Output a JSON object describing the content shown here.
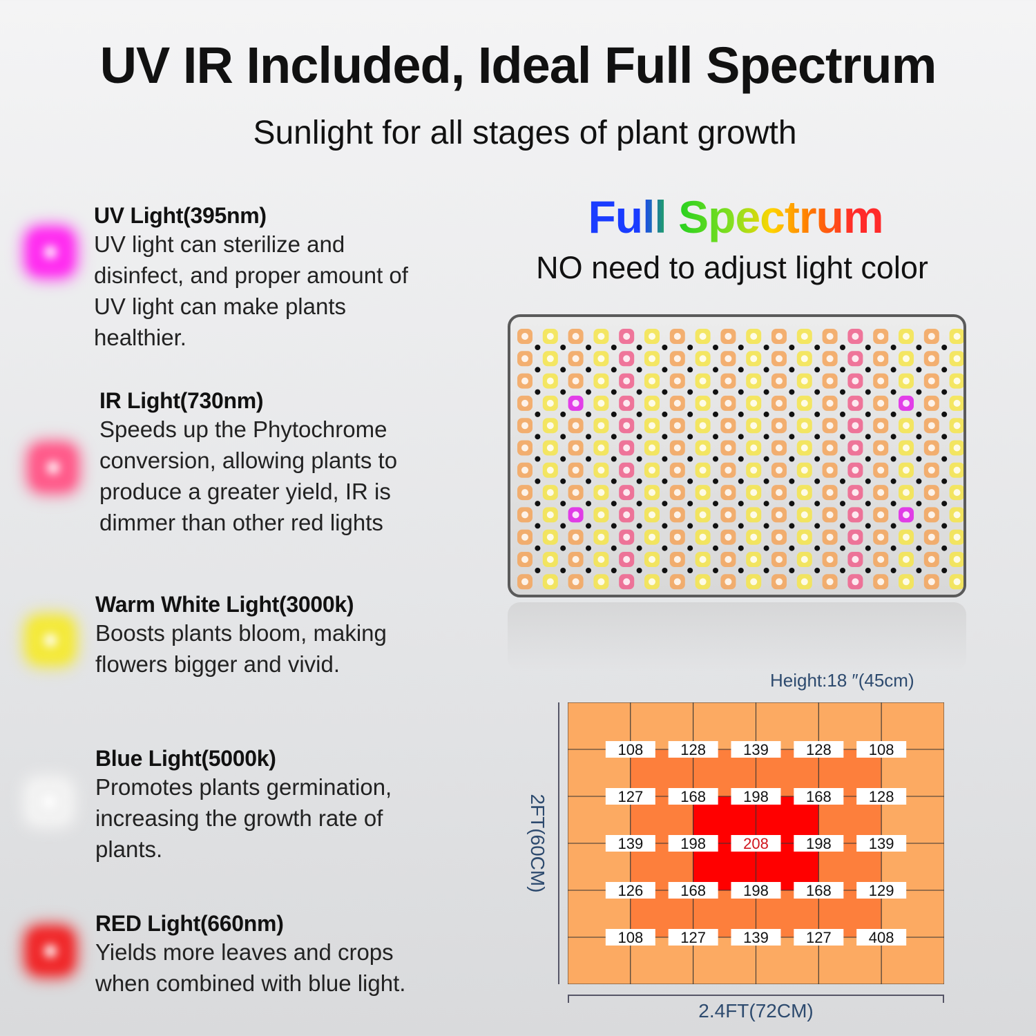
{
  "header": {
    "title": "UV IR Included, Ideal Full Spectrum",
    "subtitle": "Sunlight for all stages of plant growth"
  },
  "features": [
    {
      "title": "UV Light(395nm)",
      "text": "UV light can sterilize and disinfect, and proper amount of UV light can make plants healthier.",
      "color": "#ff2cf0"
    },
    {
      "title": "IR Light(730nm)",
      "text": "Speeds up the Phytochrome conversion, allowing plants to produce a greater yield, IR is dimmer than other red lights",
      "color": "#ff5a8a"
    },
    {
      "title": "Warm White Light(3000k)",
      "text": "Boosts plants bloom, making flowers bigger and vivid.",
      "color": "#f4e93a"
    },
    {
      "title": "Blue Light(5000k)",
      "text": "Promotes plants germination, increasing the growth rate of plants.",
      "color": "#f2f2f2"
    },
    {
      "title": "RED Light(660nm)",
      "text": "Yields more leaves and crops when combined with blue light.",
      "color": "#f0282a"
    }
  ],
  "spectrum": {
    "title": "Full Spectrum",
    "subtitle": "NO need to adjust light color"
  },
  "ppfd": {
    "height_label": "Height:18 ″(45cm)",
    "depth_label": "2FT(60CM)",
    "width_label": "2.4FT(72CM)",
    "values": [
      [
        108,
        128,
        139,
        128,
        108
      ],
      [
        127,
        168,
        198,
        168,
        128
      ],
      [
        139,
        198,
        208,
        198,
        139
      ],
      [
        126,
        168,
        198,
        168,
        129
      ],
      [
        108,
        127,
        139,
        127,
        408
      ]
    ],
    "peak_color": "#d0141c",
    "zone_colors": {
      "outer": "#fcaa62",
      "middle": "#fd7f3c",
      "center": "#ff0000"
    }
  }
}
